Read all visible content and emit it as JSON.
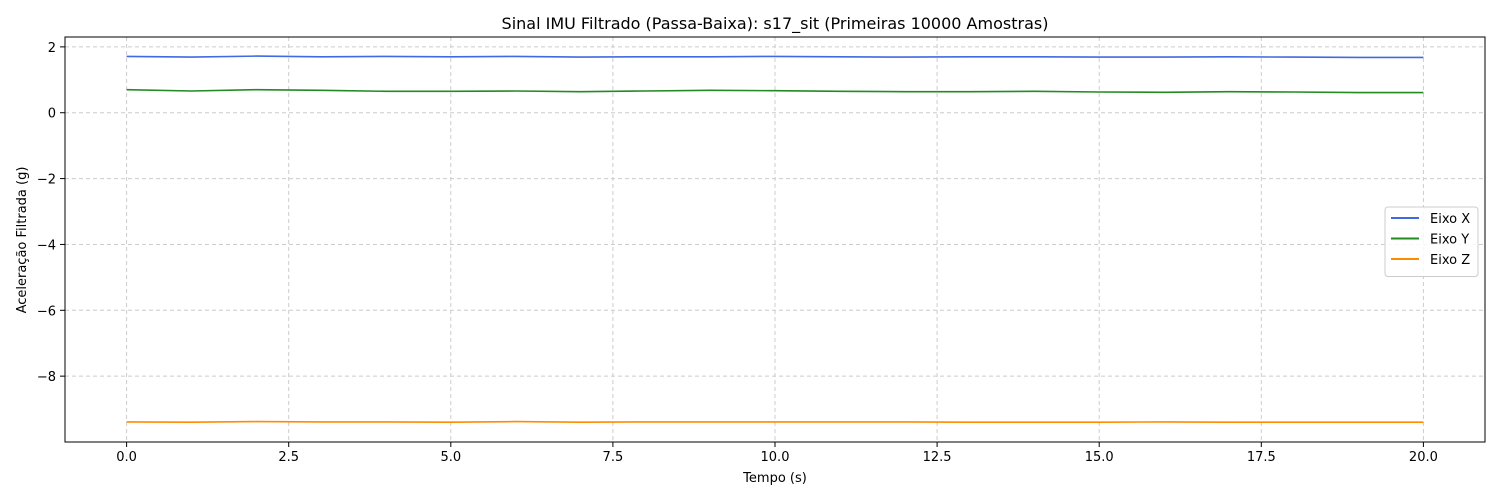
{
  "chart_data": {
    "type": "line",
    "title": "Sinal IMU Filtrado (Passa-Baixa): s17_sit (Primeiras 10000 Amostras)",
    "xlabel": "Tempo (s)",
    "ylabel": "Aceleração Filtrada (g)",
    "xlim": [
      -0.95,
      20.95
    ],
    "ylim": [
      -10.0,
      2.3
    ],
    "x_ticks": [
      0.0,
      2.5,
      5.0,
      7.5,
      10.0,
      12.5,
      15.0,
      17.5,
      20.0
    ],
    "x_tick_labels": [
      "0.0",
      "2.5",
      "5.0",
      "7.5",
      "10.0",
      "12.5",
      "15.0",
      "17.5",
      "20.0"
    ],
    "y_ticks": [
      2,
      0,
      -2,
      -4,
      -6,
      -8
    ],
    "y_tick_labels": [
      "2",
      "0",
      "−2",
      "−4",
      "−6",
      "−8"
    ],
    "grid": true,
    "legend_position": "center-right",
    "x": [
      0,
      1,
      2,
      3,
      4,
      5,
      6,
      7,
      8,
      9,
      10,
      11,
      12,
      13,
      14,
      15,
      16,
      17,
      18,
      19,
      20
    ],
    "series": [
      {
        "name": "Eixo X",
        "color": "#4169e1",
        "values": [
          1.71,
          1.69,
          1.72,
          1.7,
          1.71,
          1.7,
          1.71,
          1.69,
          1.7,
          1.7,
          1.71,
          1.7,
          1.69,
          1.7,
          1.7,
          1.69,
          1.69,
          1.7,
          1.69,
          1.68,
          1.68
        ]
      },
      {
        "name": "Eixo Y",
        "color": "#228b22",
        "values": [
          0.7,
          0.66,
          0.7,
          0.68,
          0.65,
          0.65,
          0.66,
          0.64,
          0.66,
          0.68,
          0.67,
          0.65,
          0.64,
          0.64,
          0.65,
          0.63,
          0.62,
          0.64,
          0.63,
          0.61,
          0.61
        ]
      },
      {
        "name": "Eixo Z",
        "color": "#ff8c00",
        "values": [
          -9.39,
          -9.4,
          -9.38,
          -9.39,
          -9.39,
          -9.4,
          -9.38,
          -9.4,
          -9.39,
          -9.39,
          -9.39,
          -9.39,
          -9.39,
          -9.4,
          -9.4,
          -9.4,
          -9.39,
          -9.4,
          -9.4,
          -9.4,
          -9.4
        ]
      }
    ]
  }
}
